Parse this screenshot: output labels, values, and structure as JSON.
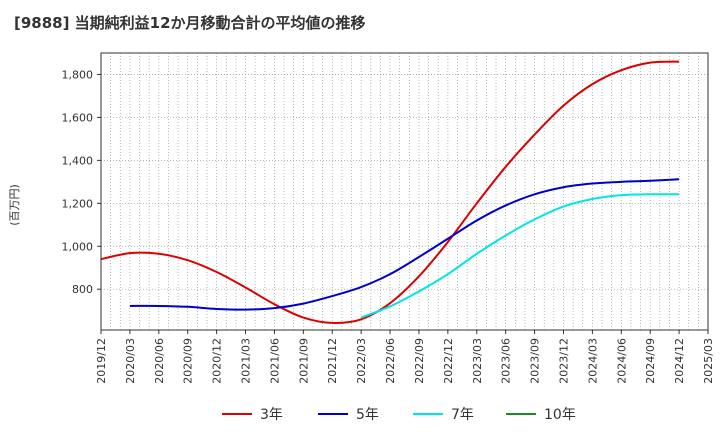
{
  "chart_data": {
    "type": "line",
    "title": "[9888]  当期純利益12か月移動合計の平均値の推移",
    "ylabel": "(百万円)",
    "xlabel": "",
    "ylim": [
      610,
      1900
    ],
    "yticks": [
      800,
      1000,
      1200,
      1400,
      1600,
      1800
    ],
    "ytick_labels": [
      "800",
      "1,000",
      "1,200",
      "1,400",
      "1,600",
      "1,800"
    ],
    "xlim": [
      "2019-12",
      "2025-03"
    ],
    "xtick_labels": [
      "2019/12",
      "2020/03",
      "2020/06",
      "2020/09",
      "2020/12",
      "2021/03",
      "2021/06",
      "2021/09",
      "2021/12",
      "2022/03",
      "2022/06",
      "2022/09",
      "2022/12",
      "2023/03",
      "2023/06",
      "2023/09",
      "2023/12",
      "2024/03",
      "2024/06",
      "2024/09",
      "2024/12",
      "2025/03"
    ],
    "grid": true,
    "legend_position": "bottom",
    "series": [
      {
        "name": "3年",
        "color": "#dd0000",
        "x": [
          "2019-12",
          "2020-03",
          "2020-06",
          "2020-09",
          "2020-12",
          "2021-03",
          "2021-06",
          "2021-09",
          "2021-12",
          "2022-03",
          "2022-06",
          "2022-09",
          "2022-12",
          "2023-03",
          "2023-06",
          "2023-09",
          "2023-12",
          "2024-03",
          "2024-06",
          "2024-09",
          "2024-12"
        ],
        "y": [
          940,
          968,
          965,
          935,
          880,
          808,
          730,
          668,
          643,
          660,
          735,
          860,
          1020,
          1200,
          1370,
          1520,
          1655,
          1755,
          1820,
          1855,
          1860
        ]
      },
      {
        "name": "5年",
        "color": "#0000cc",
        "x": [
          "2020-03",
          "2020-06",
          "2020-09",
          "2020-12",
          "2021-03",
          "2021-06",
          "2021-09",
          "2021-12",
          "2022-03",
          "2022-06",
          "2022-09",
          "2022-12",
          "2023-03",
          "2023-06",
          "2023-09",
          "2023-12",
          "2024-03",
          "2024-06",
          "2024-09",
          "2024-12"
        ],
        "y": [
          722,
          722,
          718,
          708,
          705,
          712,
          733,
          768,
          810,
          870,
          950,
          1035,
          1120,
          1190,
          1242,
          1275,
          1292,
          1300,
          1305,
          1312
        ]
      },
      {
        "name": "7年",
        "color": "#00e5e5",
        "x": [
          "2022-03",
          "2022-06",
          "2022-09",
          "2022-12",
          "2023-03",
          "2023-06",
          "2023-09",
          "2023-12",
          "2024-03",
          "2024-06",
          "2024-09",
          "2024-12"
        ],
        "y": [
          668,
          720,
          790,
          870,
          965,
          1050,
          1125,
          1185,
          1220,
          1238,
          1242,
          1242
        ]
      },
      {
        "name": "10年",
        "color": "#228822",
        "x": [],
        "y": []
      }
    ]
  }
}
